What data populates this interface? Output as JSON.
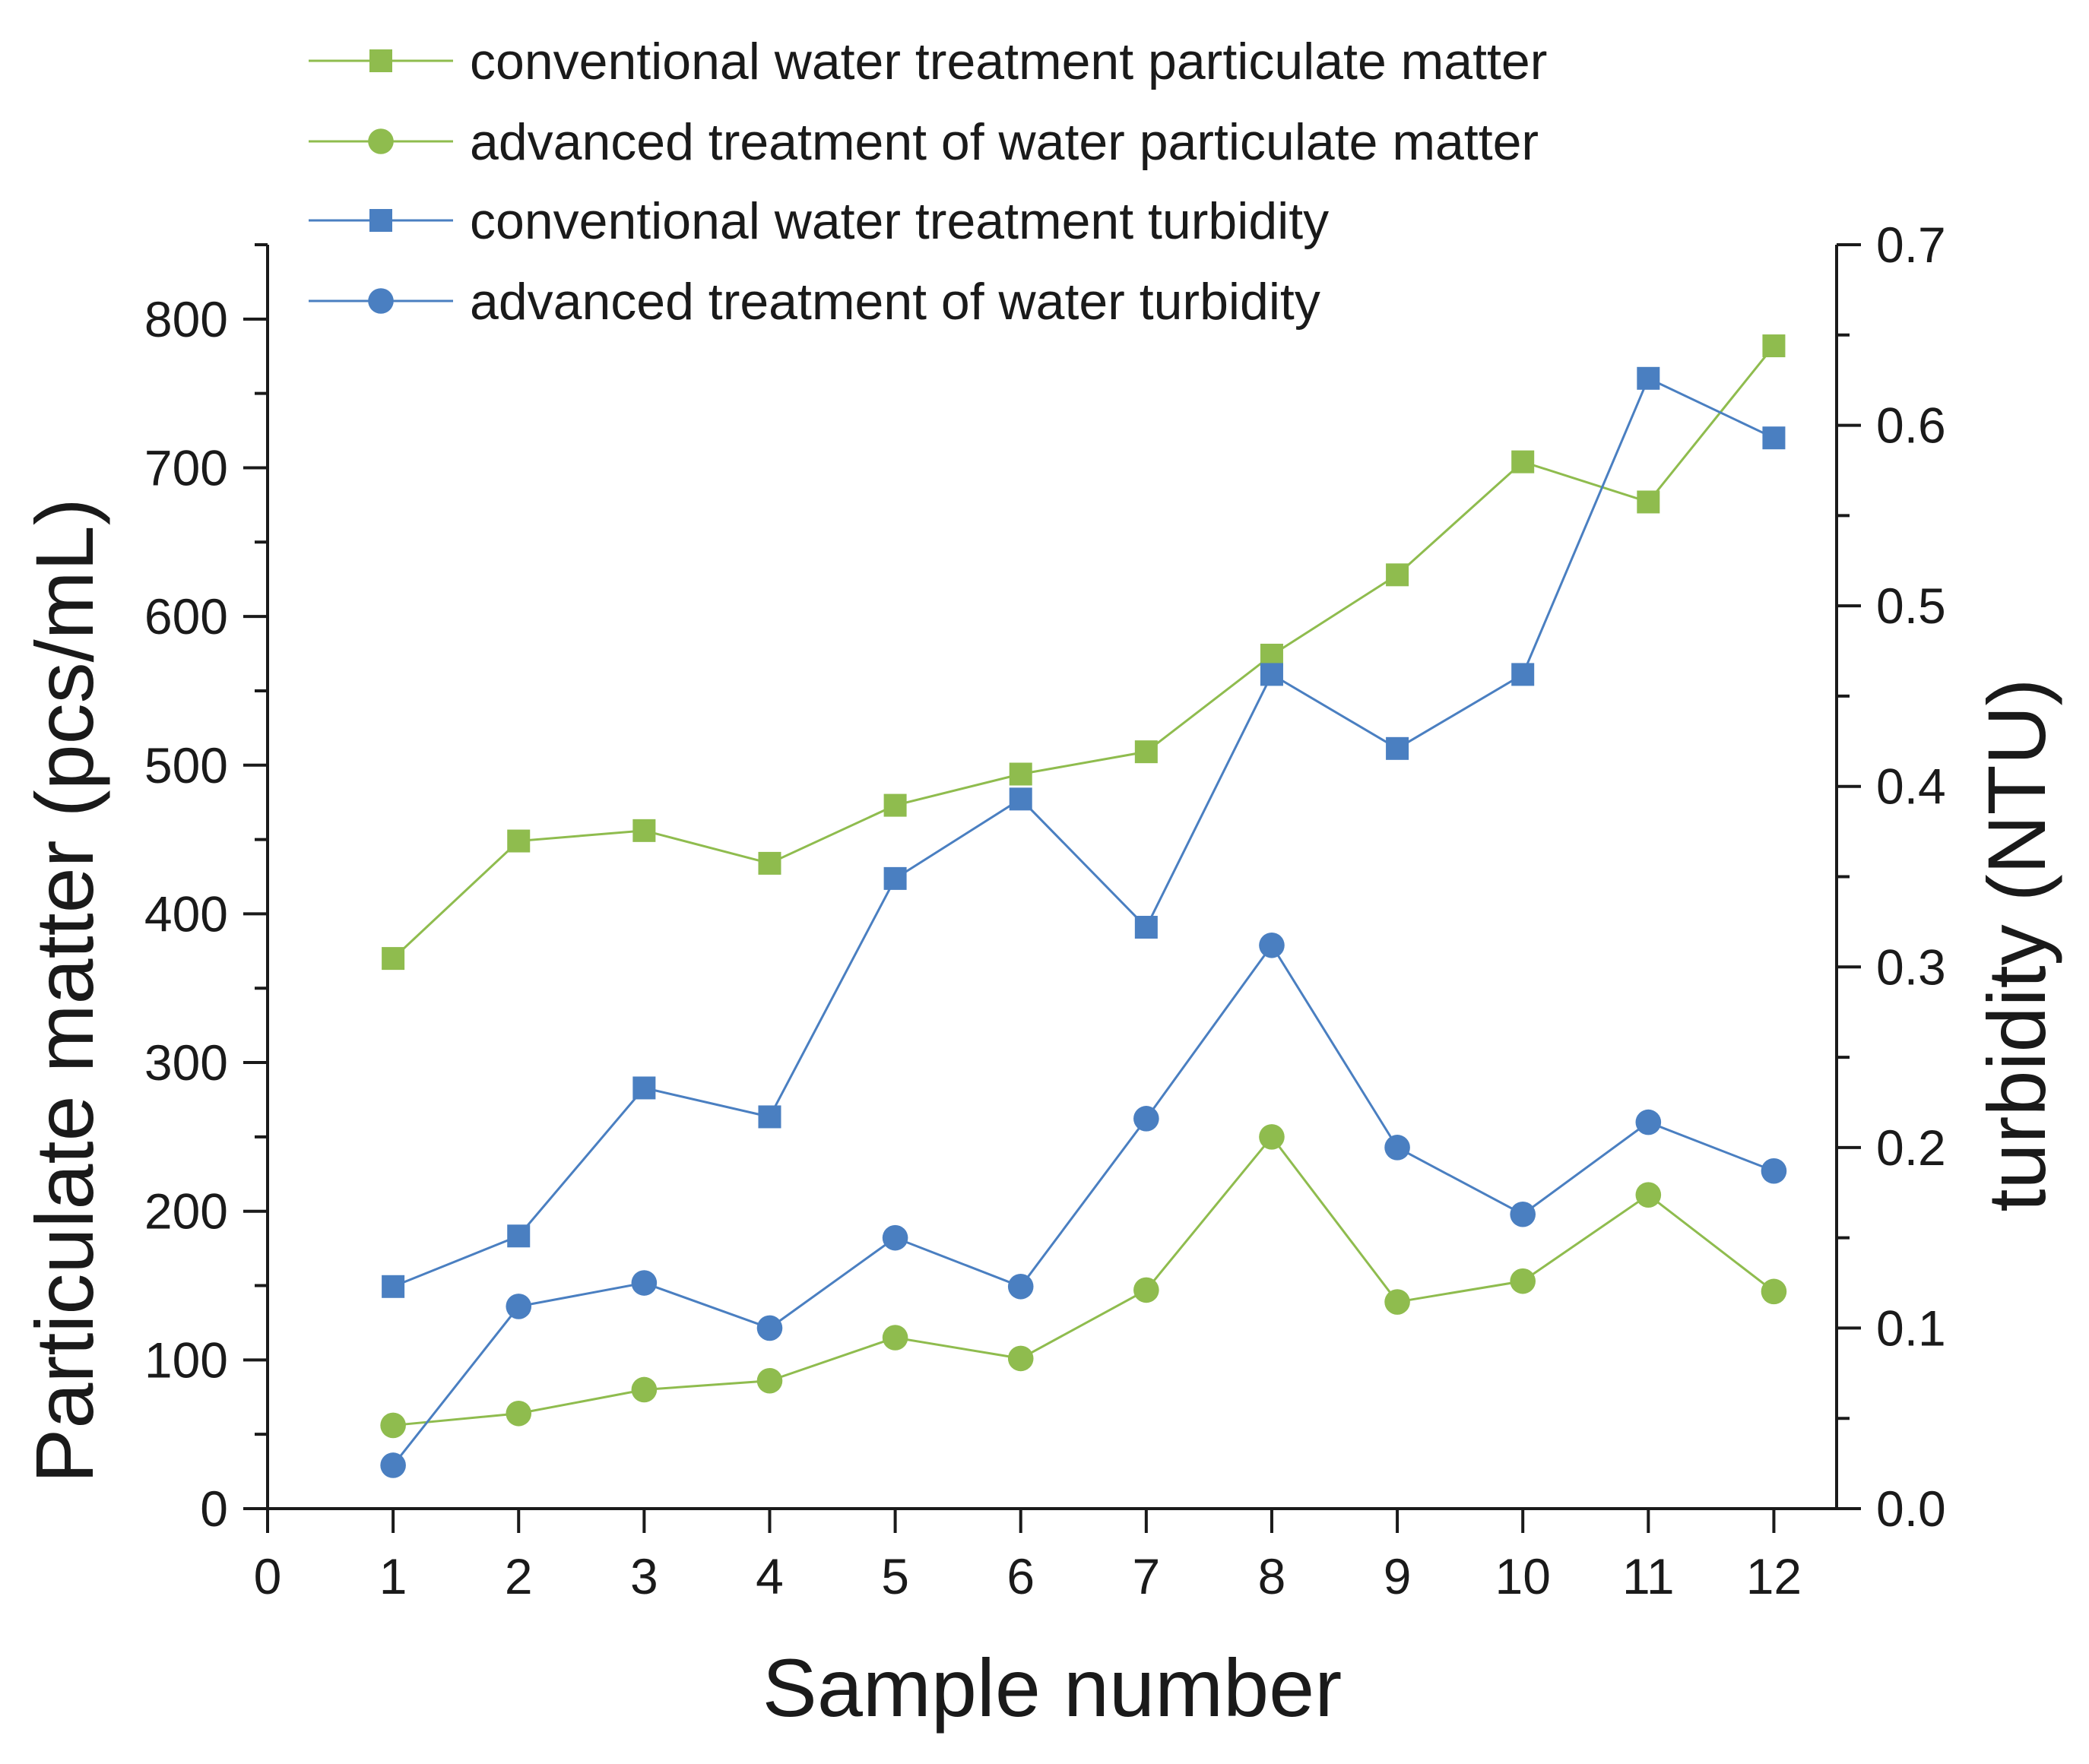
{
  "chart_data": {
    "type": "line",
    "title": "",
    "xlabel": "Sample number",
    "ylabel": "Particulate matter (pcs/mL)",
    "y2label": "turbidity (NTU)",
    "xlim": [
      0,
      12.5
    ],
    "ylim": [
      0,
      850
    ],
    "y2lim": [
      0,
      0.7
    ],
    "x_ticks": [
      "0",
      "1",
      "2",
      "3",
      "4",
      "5",
      "6",
      "7",
      "8",
      "9",
      "10",
      "11",
      "12"
    ],
    "y_ticks": [
      "0",
      "100",
      "200",
      "300",
      "400",
      "500",
      "600",
      "700",
      "800"
    ],
    "y2_ticks": [
      "0.0",
      "0.1",
      "0.2",
      "0.3",
      "0.4",
      "0.5",
      "0.6",
      "0.7"
    ],
    "legend_position": "top",
    "x": [
      1,
      2,
      3,
      4,
      5,
      6,
      7,
      8,
      9,
      10,
      11,
      12
    ],
    "series": [
      {
        "name": "conventional water treatment particulate matter",
        "axis": "left",
        "marker": "square",
        "color": "#8fbc4e",
        "values": [
          370,
          449,
          456,
          434,
          473,
          494,
          509,
          574,
          628,
          704,
          677,
          782
        ]
      },
      {
        "name": "advanced treatment of water particulate matter",
        "axis": "left",
        "marker": "circle",
        "color": "#8fbc4e",
        "values": [
          56,
          64,
          80,
          86,
          115,
          101,
          147,
          250,
          139,
          153,
          211,
          146
        ]
      },
      {
        "name": "conventional water treatment turbidity",
        "axis": "right",
        "marker": "square",
        "color": "#4a7fc1",
        "values": [
          0.123,
          0.151,
          0.233,
          0.217,
          0.349,
          0.393,
          0.322,
          0.462,
          0.421,
          0.462,
          0.626,
          0.593
        ]
      },
      {
        "name": "advanced treatment of water turbidity",
        "axis": "right",
        "marker": "circle",
        "color": "#4a7fc1",
        "values": [
          0.024,
          0.112,
          0.125,
          0.1,
          0.15,
          0.123,
          0.216,
          0.312,
          0.2,
          0.163,
          0.214,
          0.187
        ]
      }
    ]
  }
}
